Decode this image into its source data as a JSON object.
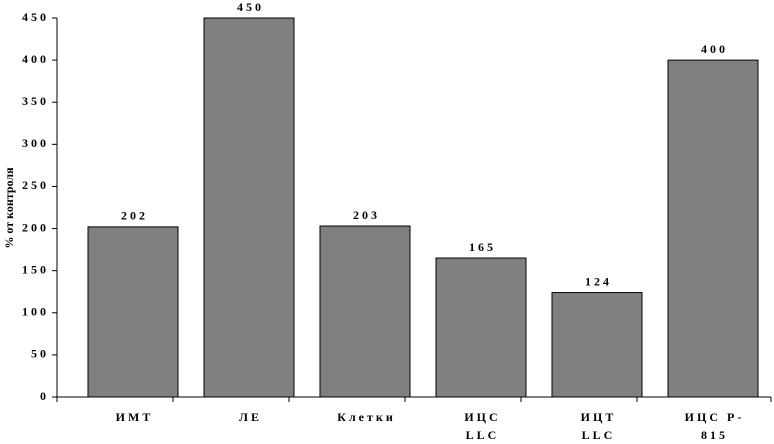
{
  "chart_data": {
    "type": "bar",
    "y_label": "% от контроля",
    "categories": [
      "ИМТ",
      "ЛЕ",
      "Клетки",
      "ИЦС\nLLC",
      "ИЦТ\nLLC",
      "ИЦС Р-\n815"
    ],
    "values": [
      202,
      450,
      203,
      165,
      124,
      400
    ],
    "color": "#808080",
    "ylim": [
      0,
      450
    ],
    "yticks": [
      0,
      50,
      100,
      150,
      200,
      250,
      300,
      350,
      400,
      450
    ],
    "grid": false
  }
}
